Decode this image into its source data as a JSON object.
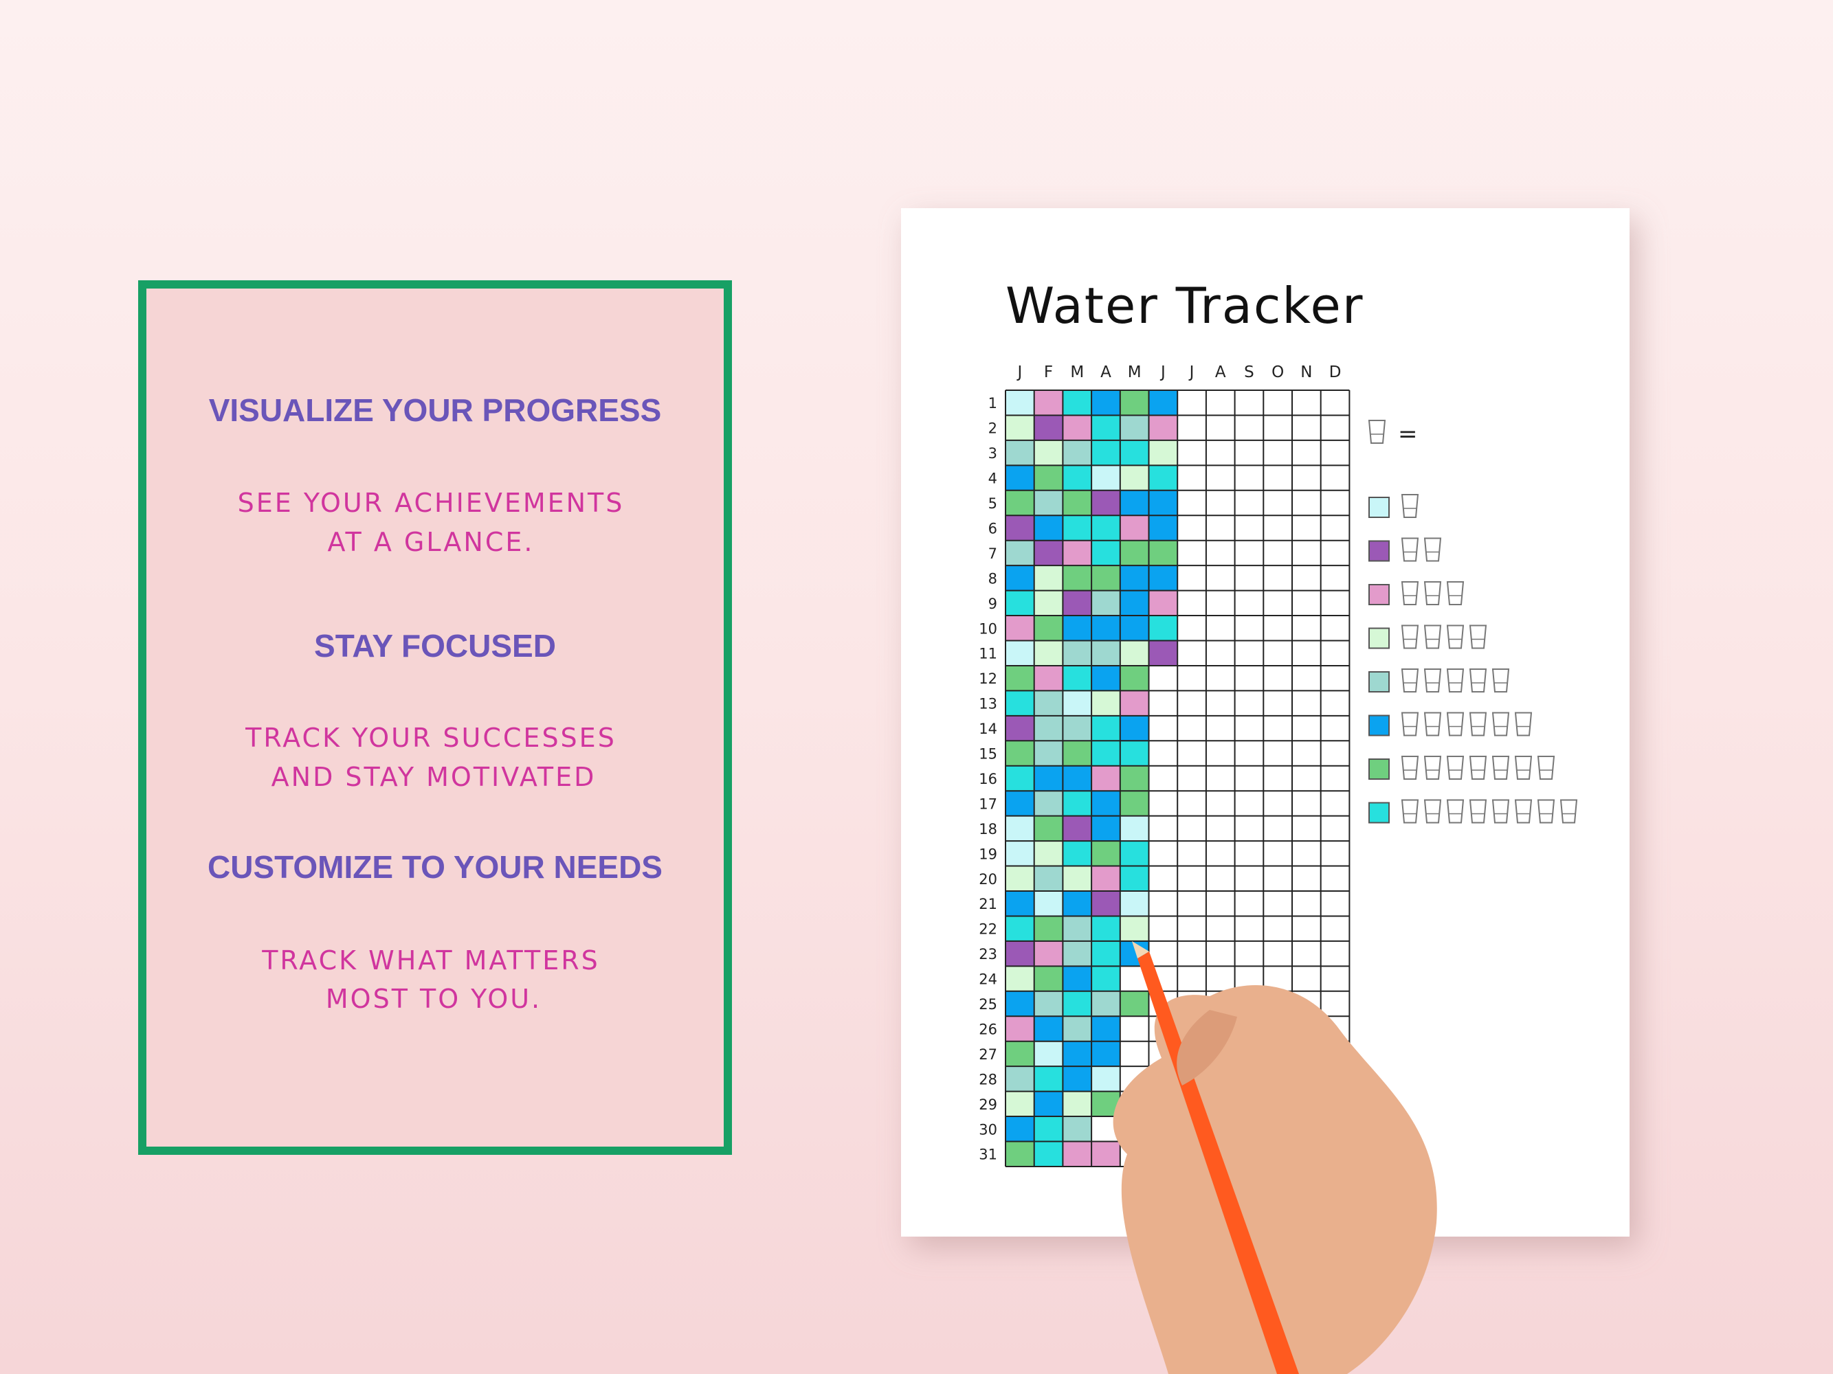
{
  "panel": {
    "sections": [
      {
        "heading": "VISUALIZE YOUR PROGRESS",
        "lines": [
          "SEE YOUR ACHIEVEMENTS",
          "AT A GLANCE."
        ]
      },
      {
        "heading": "STAY FOCUSED",
        "lines": [
          "TRACK YOUR SUCCESSES",
          "AND STAY MOTIVATED"
        ]
      },
      {
        "heading": "CUSTOMIZE TO YOUR NEEDS",
        "lines": [
          "TRACK WHAT MATTERS",
          "MOST TO YOU."
        ]
      }
    ]
  },
  "tracker": {
    "title": "Water Tracker",
    "months": [
      "J",
      "F",
      "M",
      "A",
      "M",
      "J",
      "J",
      "A",
      "S",
      "O",
      "N",
      "D"
    ],
    "days": [
      1,
      2,
      3,
      4,
      5,
      6,
      7,
      8,
      9,
      10,
      11,
      12,
      13,
      14,
      15,
      16,
      17,
      18,
      19,
      20,
      21,
      22,
      23,
      24,
      25,
      26,
      27,
      28,
      29,
      30,
      31
    ],
    "equals": "=",
    "legend": [
      {
        "color": "#c9f6f8",
        "glasses": 1
      },
      {
        "color": "#9b59b6",
        "glasses": 2
      },
      {
        "color": "#e39bcb",
        "glasses": 3
      },
      {
        "color": "#d6f8d6",
        "glasses": 4
      },
      {
        "color": "#9ed8d0",
        "glasses": 5
      },
      {
        "color": "#0aa3f0",
        "glasses": 6
      },
      {
        "color": "#6fcf7f",
        "glasses": 7
      },
      {
        "color": "#27e0de",
        "glasses": 8
      }
    ],
    "rows": [
      [
        1,
        3,
        8,
        6,
        7,
        6
      ],
      [
        4,
        2,
        3,
        8,
        5,
        3
      ],
      [
        5,
        4,
        5,
        8,
        8,
        4
      ],
      [
        6,
        7,
        8,
        1,
        4,
        8
      ],
      [
        7,
        5,
        7,
        2,
        6,
        6
      ],
      [
        2,
        6,
        8,
        8,
        3,
        6
      ],
      [
        5,
        2,
        3,
        8,
        7,
        7
      ],
      [
        6,
        4,
        7,
        7,
        6,
        6
      ],
      [
        8,
        4,
        2,
        5,
        6,
        3
      ],
      [
        3,
        7,
        6,
        6,
        6,
        8
      ],
      [
        1,
        4,
        5,
        5,
        4,
        2
      ],
      [
        7,
        3,
        8,
        6,
        7
      ],
      [
        8,
        5,
        1,
        4,
        3
      ],
      [
        2,
        5,
        5,
        8,
        6
      ],
      [
        7,
        5,
        7,
        8,
        8
      ],
      [
        8,
        6,
        6,
        3,
        7
      ],
      [
        6,
        5,
        8,
        6,
        7
      ],
      [
        1,
        7,
        2,
        6,
        1
      ],
      [
        1,
        4,
        8,
        7,
        8
      ],
      [
        4,
        5,
        4,
        3,
        8
      ],
      [
        6,
        1,
        6,
        2,
        1
      ],
      [
        8,
        7,
        5,
        8,
        4
      ],
      [
        2,
        3,
        5,
        8,
        6
      ],
      [
        4,
        7,
        6,
        8
      ],
      [
        6,
        5,
        8,
        5,
        7
      ],
      [
        3,
        6,
        5,
        6
      ],
      [
        7,
        1,
        6,
        6
      ],
      [
        5,
        8,
        6,
        1
      ],
      [
        4,
        6,
        4,
        7
      ],
      [
        6,
        8,
        5
      ],
      [
        7,
        8,
        3,
        3
      ]
    ]
  }
}
